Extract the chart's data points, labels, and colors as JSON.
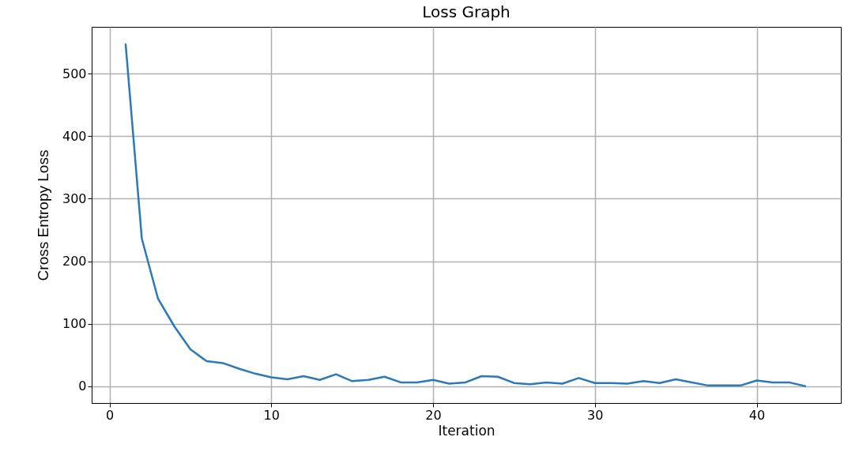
{
  "chart_data": {
    "type": "line",
    "title": "Loss Graph",
    "xlabel": "Iteration",
    "ylabel": "Cross Entropy Loss",
    "x": [
      1,
      2,
      3,
      4,
      5,
      6,
      7,
      8,
      9,
      10,
      11,
      12,
      13,
      14,
      15,
      16,
      17,
      18,
      19,
      20,
      21,
      22,
      23,
      24,
      25,
      26,
      27,
      28,
      29,
      30,
      31,
      32,
      33,
      34,
      35,
      36,
      37,
      38,
      39,
      40,
      41,
      42,
      43
    ],
    "series": [
      {
        "color": "#2a7ab9",
        "values": [
          547,
          236,
          140,
          96,
          59,
          40,
          37,
          28,
          20,
          14,
          11,
          16,
          10,
          19,
          8,
          10,
          15,
          6,
          6,
          10,
          4,
          6,
          16,
          15,
          5,
          3,
          6,
          4,
          13,
          5,
          5,
          4,
          8,
          5,
          11,
          6,
          1,
          1,
          1,
          9,
          6,
          6,
          0
        ]
      }
    ],
    "xlim": [
      -1.1,
      45.2
    ],
    "ylim": [
      -27,
      575
    ],
    "xticks": [
      0,
      10,
      20,
      30,
      40
    ],
    "yticks": [
      0,
      100,
      200,
      300,
      400,
      500
    ],
    "grid": true,
    "marker": "none",
    "line_style": "solid"
  }
}
